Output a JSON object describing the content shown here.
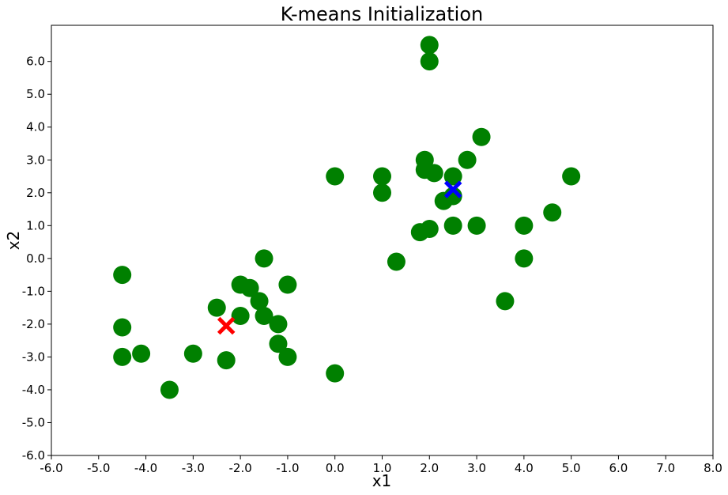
{
  "chart_data": {
    "type": "scatter",
    "title": "K-means Initialization",
    "xlabel": "x1",
    "ylabel": "x2",
    "xlim": [
      -6.0,
      8.0
    ],
    "ylim": [
      -6.0,
      7.1
    ],
    "grid": false,
    "xticks": [
      -6.0,
      -5.0,
      -4.0,
      -3.0,
      -2.0,
      -1.0,
      0.0,
      1.0,
      2.0,
      3.0,
      4.0,
      5.0,
      6.0,
      7.0,
      8.0
    ],
    "xtick_labels": [
      "-6.0",
      "-5.0",
      "-4.0",
      "-3.0",
      "-2.0",
      "-1.0",
      "0.0",
      "1.0",
      "2.0",
      "3.0",
      "4.0",
      "5.0",
      "6.0",
      "7.0",
      "8.0"
    ],
    "yticks": [
      -6.0,
      -5.0,
      -4.0,
      -3.0,
      -2.0,
      -1.0,
      0.0,
      1.0,
      2.0,
      3.0,
      4.0,
      5.0,
      6.0
    ],
    "ytick_labels": [
      "-6.0",
      "-5.0",
      "-4.0",
      "-3.0",
      "-2.0",
      "-1.0",
      "0.0",
      "1.0",
      "2.0",
      "3.0",
      "4.0",
      "5.0",
      "6.0"
    ],
    "series": [
      {
        "marker": "circle",
        "color": "#008000",
        "points": [
          [
            -4.5,
            -0.5
          ],
          [
            -4.5,
            -2.1
          ],
          [
            -4.5,
            -3.0
          ],
          [
            -4.1,
            -2.9
          ],
          [
            -3.5,
            -4.0
          ],
          [
            -3.0,
            -2.9
          ],
          [
            -2.5,
            -1.5
          ],
          [
            -2.3,
            -3.1
          ],
          [
            -2.0,
            -0.8
          ],
          [
            -2.0,
            -1.75
          ],
          [
            -1.8,
            -0.9
          ],
          [
            -1.6,
            -1.3
          ],
          [
            -1.5,
            0.0
          ],
          [
            -1.5,
            -1.75
          ],
          [
            -1.2,
            -2.0
          ],
          [
            -1.2,
            -2.6
          ],
          [
            -1.0,
            -0.8
          ],
          [
            -1.0,
            -3.0
          ],
          [
            0.0,
            2.5
          ],
          [
            0.0,
            -3.5
          ],
          [
            1.0,
            2.5
          ],
          [
            1.0,
            2.0
          ],
          [
            1.3,
            -0.1
          ],
          [
            1.8,
            0.8
          ],
          [
            1.9,
            3.0
          ],
          [
            1.9,
            2.7
          ],
          [
            2.0,
            6.5
          ],
          [
            2.0,
            6.0
          ],
          [
            2.0,
            0.9
          ],
          [
            2.1,
            2.6
          ],
          [
            2.3,
            1.75
          ],
          [
            2.5,
            2.5
          ],
          [
            2.5,
            1.9
          ],
          [
            2.5,
            1.0
          ],
          [
            2.8,
            3.0
          ],
          [
            3.0,
            1.0
          ],
          [
            3.1,
            3.7
          ],
          [
            3.6,
            -1.3
          ],
          [
            4.0,
            1.0
          ],
          [
            4.0,
            0.0
          ],
          [
            4.6,
            1.4
          ],
          [
            5.0,
            2.5
          ]
        ]
      },
      {
        "marker": "x",
        "color": "#ff0000",
        "points": [
          [
            -2.3,
            -2.05
          ]
        ]
      },
      {
        "marker": "x",
        "color": "#0000ff",
        "points": [
          [
            2.5,
            2.1
          ]
        ]
      }
    ]
  }
}
